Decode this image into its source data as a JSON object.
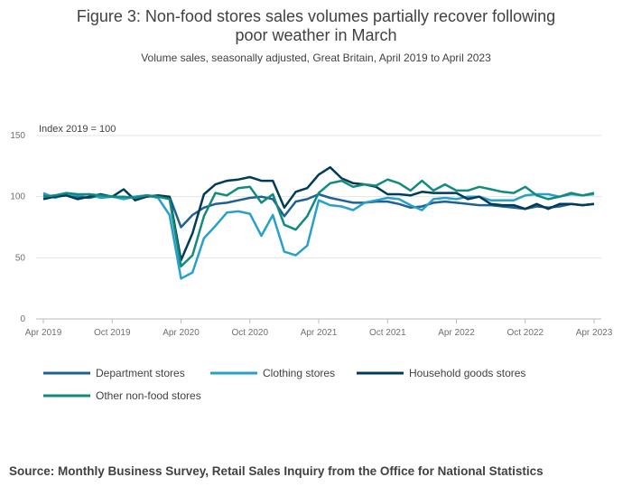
{
  "chart_data": {
    "type": "line",
    "title": "Figure 3: Non-food stores sales volumes partially recover following poor weather in March",
    "subtitle": "Volume sales, seasonally adjusted, Great Britain, April 2019 to April 2023",
    "y_label": "Index 2019 = 100",
    "source": "Source: Monthly Business Survey, Retail Sales Inquiry from the Office for National Statistics",
    "x": [
      "2019-04",
      "2019-05",
      "2019-06",
      "2019-07",
      "2019-08",
      "2019-09",
      "2019-10",
      "2019-11",
      "2019-12",
      "2020-01",
      "2020-02",
      "2020-03",
      "2020-04",
      "2020-05",
      "2020-06",
      "2020-07",
      "2020-08",
      "2020-09",
      "2020-10",
      "2020-11",
      "2020-12",
      "2021-01",
      "2021-02",
      "2021-03",
      "2021-04",
      "2021-05",
      "2021-06",
      "2021-07",
      "2021-08",
      "2021-09",
      "2021-10",
      "2021-11",
      "2021-12",
      "2022-01",
      "2022-02",
      "2022-03",
      "2022-04",
      "2022-05",
      "2022-06",
      "2022-07",
      "2022-08",
      "2022-09",
      "2022-10",
      "2022-11",
      "2022-12",
      "2023-01",
      "2023-02",
      "2023-03",
      "2023-04"
    ],
    "xticks": [
      {
        "value": "2019-04",
        "label": "Apr 2019"
      },
      {
        "value": "2019-10",
        "label": "Oct 2019"
      },
      {
        "value": "2020-04",
        "label": "Apr 2020"
      },
      {
        "value": "2020-10",
        "label": "Oct 2020"
      },
      {
        "value": "2021-04",
        "label": "Apr 2021"
      },
      {
        "value": "2021-10",
        "label": "Oct 2021"
      },
      {
        "value": "2022-04",
        "label": "Apr 2022"
      },
      {
        "value": "2022-10",
        "label": "Oct 2022"
      },
      {
        "value": "2023-04",
        "label": "Apr 2023"
      }
    ],
    "ylim": [
      0,
      150
    ],
    "yticks": [
      0,
      50,
      100,
      150
    ],
    "grid": true,
    "legend": "bottom",
    "series": [
      {
        "name": "Department stores",
        "color": "#206095",
        "values": [
          101,
          100,
          101,
          100,
          99,
          101,
          100,
          99,
          100,
          101,
          100,
          100,
          75,
          85,
          91,
          94,
          95,
          97,
          99,
          100,
          98,
          84,
          96,
          98,
          102,
          99,
          97,
          95,
          95,
          96,
          96,
          94,
          91,
          92,
          95,
          96,
          95,
          94,
          93,
          93,
          92,
          91,
          90,
          92,
          91,
          92,
          94,
          93,
          94
        ]
      },
      {
        "name": "Clothing stores",
        "color": "#27a0cc",
        "values": [
          103,
          99,
          102,
          101,
          102,
          99,
          100,
          98,
          100,
          101,
          99,
          85,
          33,
          38,
          66,
          76,
          87,
          88,
          86,
          68,
          85,
          55,
          52,
          60,
          97,
          93,
          92,
          89,
          95,
          97,
          99,
          98,
          93,
          89,
          98,
          99,
          98,
          100,
          100,
          97,
          97,
          97,
          101,
          102,
          102,
          100,
          102,
          101,
          102
        ]
      },
      {
        "name": "Household goods stores",
        "color": "#003c57",
        "values": [
          98,
          100,
          101,
          98,
          100,
          102,
          100,
          106,
          97,
          100,
          101,
          100,
          48,
          70,
          102,
          110,
          113,
          114,
          116,
          113,
          113,
          91,
          104,
          107,
          118,
          124,
          115,
          111,
          110,
          108,
          102,
          102,
          101,
          104,
          103,
          103,
          103,
          98,
          100,
          94,
          93,
          93,
          90,
          94,
          90,
          94,
          94,
          93,
          94
        ]
      },
      {
        "name": "Other non-food stores",
        "color": "#118c7b",
        "values": [
          100,
          101,
          103,
          102,
          102,
          101,
          100,
          100,
          99,
          101,
          100,
          98,
          43,
          52,
          84,
          103,
          101,
          107,
          108,
          95,
          102,
          77,
          73,
          84,
          103,
          111,
          113,
          108,
          110,
          109,
          114,
          111,
          105,
          113,
          105,
          110,
          105,
          105,
          108,
          106,
          104,
          103,
          108,
          101,
          98,
          100,
          103,
          101,
          103
        ]
      }
    ]
  }
}
